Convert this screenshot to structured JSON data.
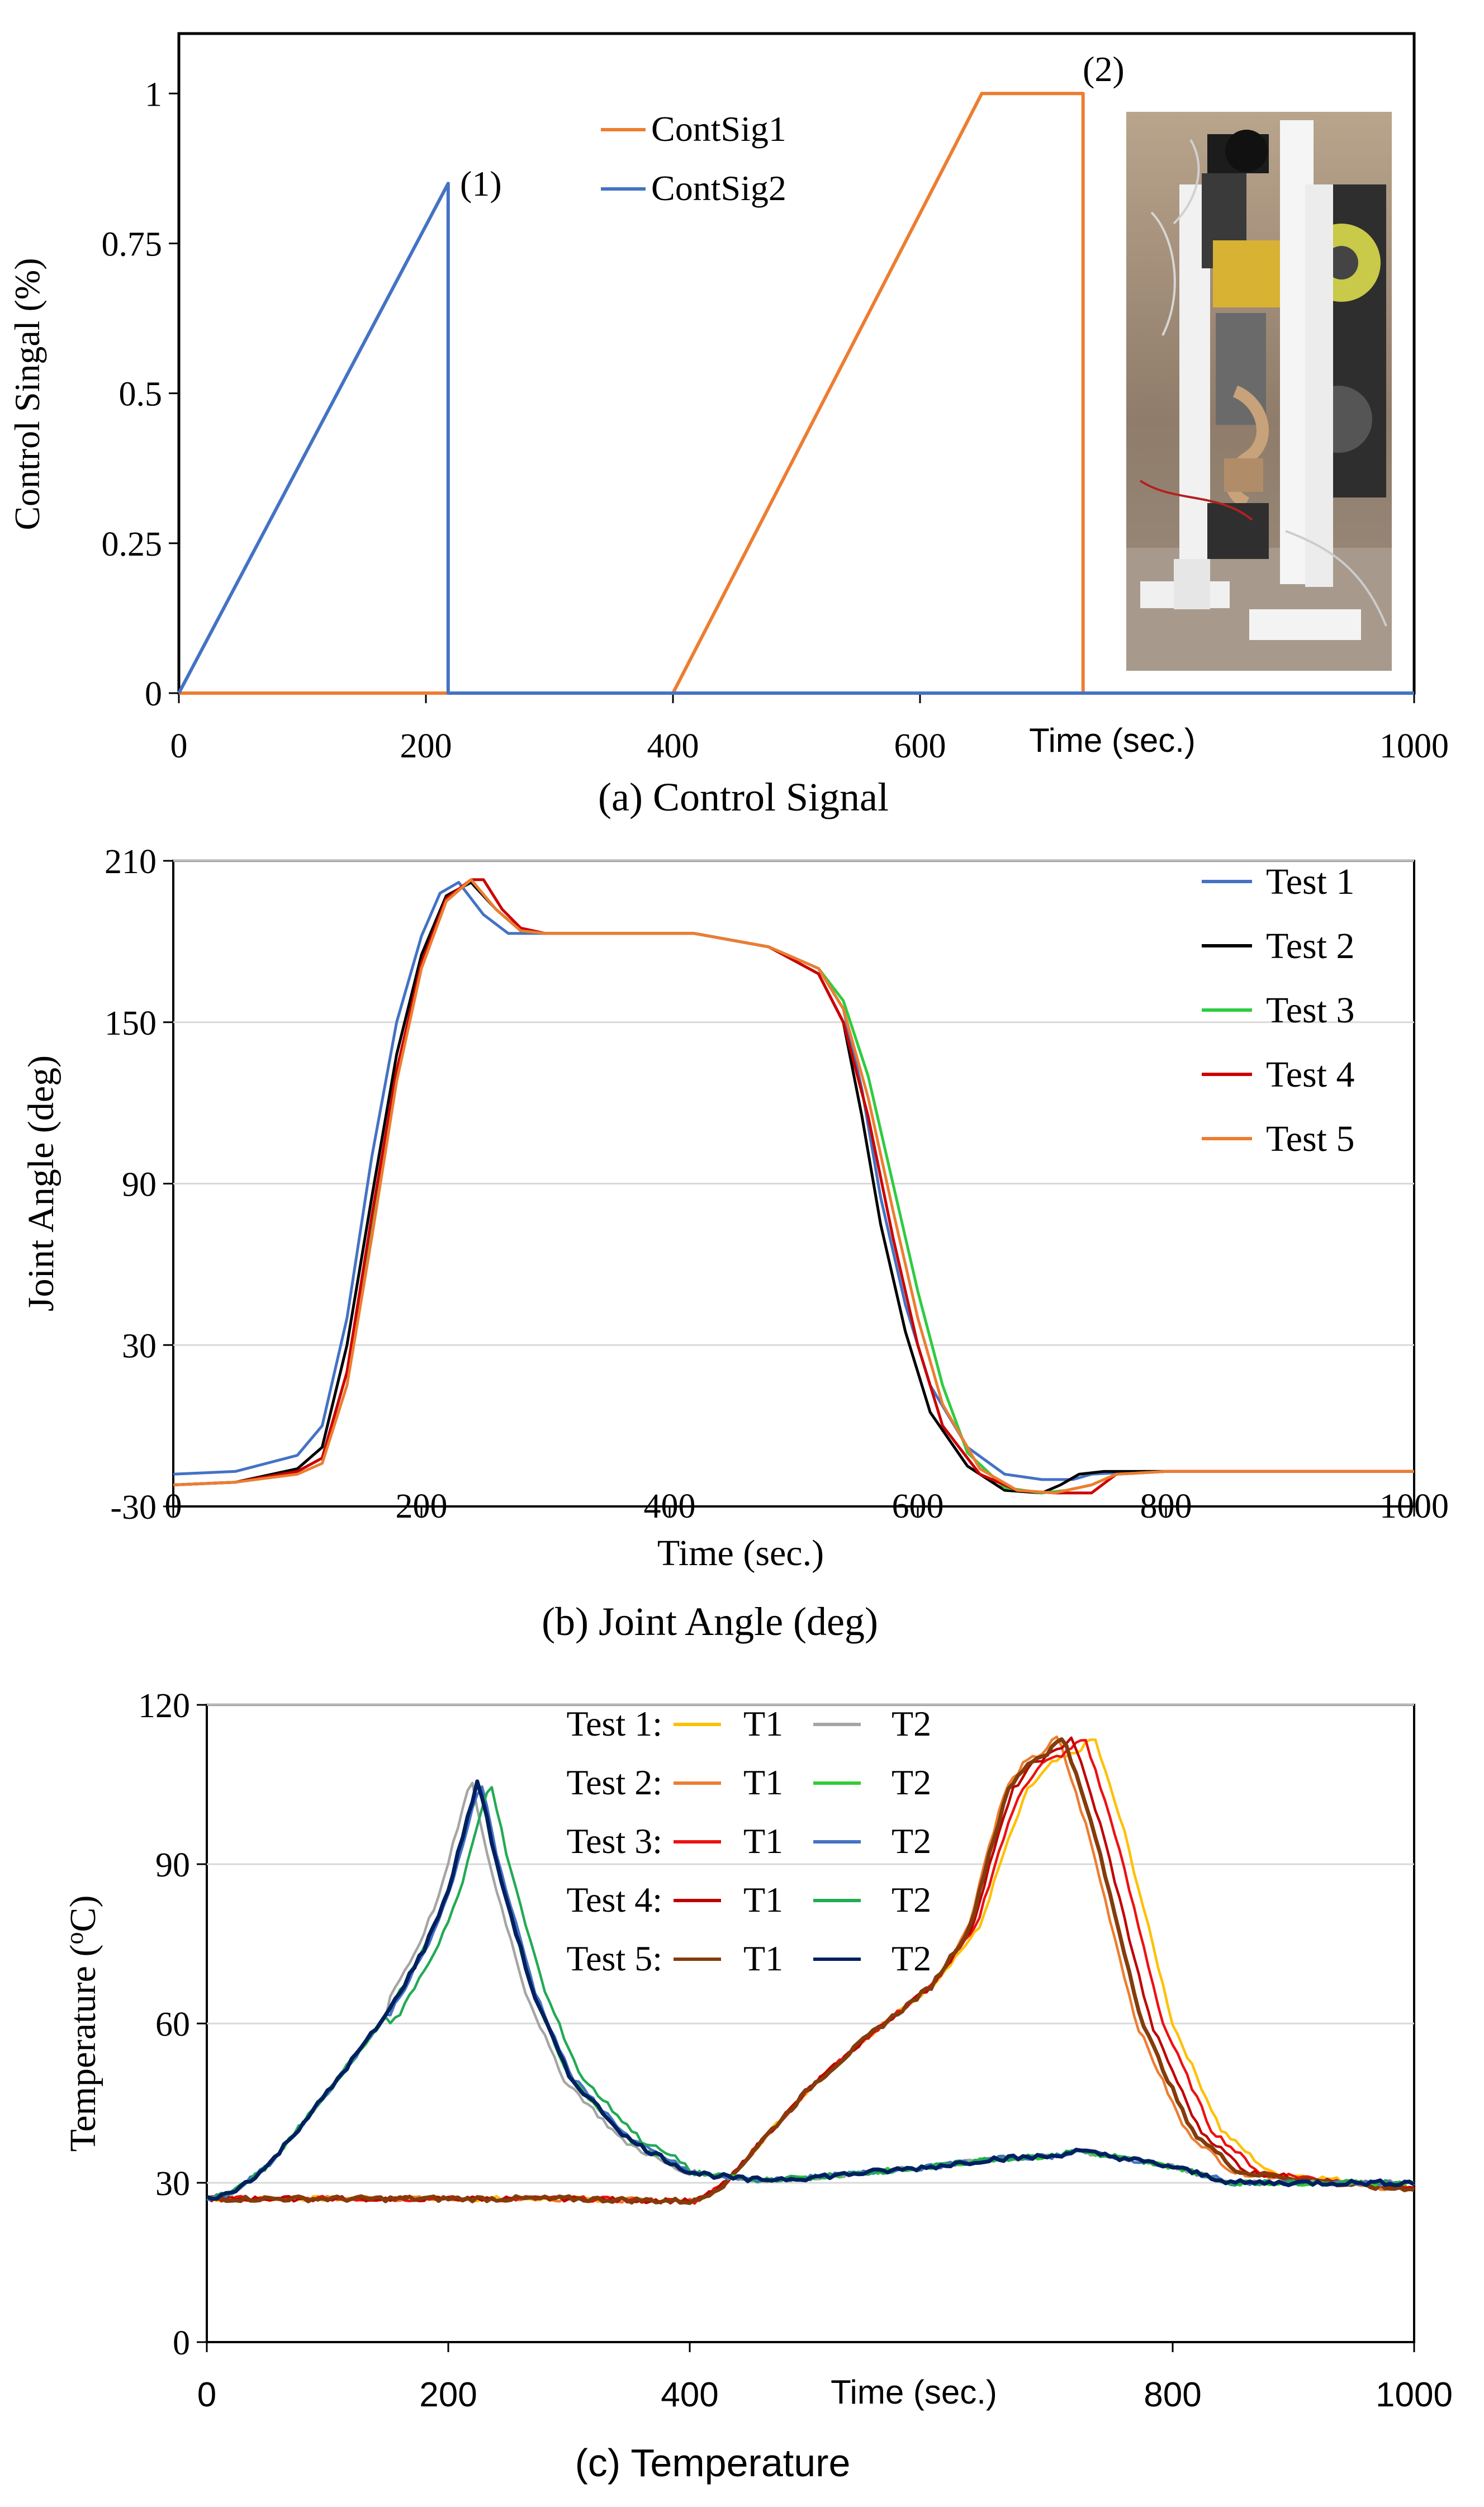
{
  "chart_data": [
    {
      "panel": "a",
      "type": "line",
      "caption": "(a) Control Signal",
      "ylabel": "Control Singal (%)",
      "xlabel": "Time (sec.)",
      "xlim": [
        0,
        1000
      ],
      "ylim": [
        0,
        1.1
      ],
      "xticks": [
        0,
        200,
        400,
        600,
        1000
      ],
      "xtick_labels": [
        "0",
        "200",
        "400",
        "600",
        "1000"
      ],
      "yticks": [
        0,
        0.25,
        0.5,
        0.75,
        1
      ],
      "ytick_labels": [
        "0",
        "0.25",
        "0.5",
        "0.75",
        "1"
      ],
      "legend": "top-center",
      "annotations": [
        {
          "text": "(1)",
          "x": 218,
          "y": 0.85
        },
        {
          "text": "(2)",
          "x": 660,
          "y": 1.02
        }
      ],
      "inset_photo": "robot-joint-test-rig-photo",
      "series": [
        {
          "name": "ContSig1",
          "color": "#ED7D31",
          "x": [
            0,
            400,
            650,
            732,
            732,
            1000
          ],
          "y": [
            0,
            0,
            1,
            1,
            0,
            0
          ]
        },
        {
          "name": "ContSig2",
          "color": "#4472C4",
          "x": [
            0,
            218,
            218,
            1000
          ],
          "y": [
            0,
            0.85,
            0,
            0
          ]
        }
      ]
    },
    {
      "panel": "b",
      "type": "line",
      "caption": "(b) Joint Angle (deg)",
      "ylabel": "Joint Angle (deg)",
      "xlabel": "Time (sec.)",
      "xlim": [
        0,
        1000
      ],
      "ylim": [
        -30,
        210
      ],
      "xticks": [
        0,
        200,
        400,
        600,
        800,
        1000
      ],
      "xtick_labels": [
        "0",
        "200",
        "400",
        "600",
        "800",
        "1000"
      ],
      "yticks": [
        -30,
        30,
        90,
        150,
        210
      ],
      "ytick_labels": [
        "-30",
        "30",
        "90",
        "150",
        "210"
      ],
      "legend": "top-right",
      "series": [
        {
          "name": "Test 1",
          "color": "#4472C4",
          "x": [
            0,
            50,
            100,
            120,
            140,
            160,
            180,
            200,
            215,
            230,
            250,
            270,
            300,
            350,
            420,
            480,
            520,
            540,
            555,
            570,
            590,
            610,
            640,
            670,
            700,
            725,
            740,
            780,
            850,
            1000
          ],
          "y": [
            -18,
            -17,
            -11,
            0,
            40,
            100,
            150,
            182,
            198,
            202,
            190,
            183,
            183,
            183,
            183,
            178,
            170,
            155,
            125,
            85,
            45,
            15,
            -8,
            -18,
            -20,
            -20,
            -18,
            -17,
            -17,
            -17
          ]
        },
        {
          "name": "Test 2",
          "color": "#000000",
          "x": [
            0,
            50,
            100,
            120,
            140,
            160,
            180,
            200,
            220,
            240,
            260,
            280,
            300,
            350,
            420,
            480,
            520,
            540,
            555,
            570,
            590,
            610,
            640,
            670,
            700,
            715,
            730,
            750,
            800,
            1000
          ],
          "y": [
            -22,
            -21,
            -16,
            -8,
            30,
            85,
            138,
            175,
            197,
            202,
            192,
            184,
            183,
            183,
            183,
            178,
            168,
            150,
            115,
            75,
            35,
            5,
            -15,
            -24,
            -25,
            -22,
            -18,
            -17,
            -17,
            -17
          ]
        },
        {
          "name": "Test 3",
          "color": "#2ECC40",
          "x": [
            0,
            50,
            100,
            120,
            140,
            160,
            180,
            200,
            220,
            240,
            260,
            280,
            300,
            350,
            420,
            480,
            520,
            540,
            560,
            580,
            600,
            620,
            640,
            670,
            700,
            720,
            740,
            760,
            800,
            1000
          ],
          "y": [
            -22,
            -21,
            -17,
            -12,
            20,
            75,
            130,
            172,
            195,
            203,
            192,
            184,
            183,
            183,
            183,
            178,
            170,
            158,
            130,
            90,
            50,
            15,
            -10,
            -23,
            -25,
            -24,
            -22,
            -18,
            -17,
            -17
          ]
        },
        {
          "name": "Test 4",
          "color": "#CC0000",
          "x": [
            0,
            50,
            100,
            120,
            140,
            160,
            180,
            200,
            220,
            240,
            250,
            265,
            280,
            300,
            350,
            420,
            480,
            520,
            540,
            560,
            580,
            600,
            620,
            650,
            680,
            710,
            740,
            760,
            800,
            1000
          ],
          "y": [
            -22,
            -21,
            -17,
            -12,
            20,
            78,
            132,
            172,
            196,
            203,
            203,
            192,
            185,
            183,
            183,
            183,
            178,
            168,
            150,
            115,
            70,
            30,
            0,
            -18,
            -24,
            -25,
            -25,
            -18,
            -17,
            -17
          ]
        },
        {
          "name": "Test 5",
          "color": "#ED7D31",
          "x": [
            0,
            50,
            100,
            120,
            140,
            160,
            180,
            200,
            220,
            240,
            260,
            280,
            300,
            350,
            420,
            480,
            520,
            540,
            560,
            580,
            600,
            620,
            650,
            680,
            710,
            740,
            760,
            800,
            1000
          ],
          "y": [
            -22,
            -21,
            -18,
            -14,
            15,
            70,
            128,
            170,
            195,
            203,
            192,
            184,
            183,
            183,
            183,
            178,
            170,
            155,
            122,
            80,
            40,
            8,
            -16,
            -24,
            -25,
            -22,
            -18,
            -17,
            -17
          ]
        }
      ]
    },
    {
      "panel": "c",
      "type": "line",
      "caption": "(c) Temperature",
      "ylabel": "Temperature (oC)",
      "ylabel_main": "Temperature (",
      "ylabel_sup": "o",
      "ylabel_tail": "C)",
      "xlabel": "Time (sec.)",
      "xlim": [
        0,
        1000
      ],
      "ylim": [
        0,
        120
      ],
      "xticks": [
        0,
        200,
        400,
        800,
        1000
      ],
      "xtick_labels": [
        "0",
        "200",
        "400",
        "800",
        "1000"
      ],
      "yticks": [
        0,
        30,
        60,
        90,
        120
      ],
      "ytick_labels": [
        "0",
        "30",
        "60",
        "90",
        "120"
      ],
      "legend": "top-center",
      "legend_rows": [
        {
          "test": "Test 1:",
          "t1_label": "T1",
          "t1_color": "#FFC000",
          "t2_label": "T2",
          "t2_color": "#A5A5A5"
        },
        {
          "test": "Test 2:",
          "t1_label": "T1",
          "t1_color": "#ED7D31",
          "t2_label": "T2",
          "t2_color": "#33CC33"
        },
        {
          "test": "Test 3:",
          "t1_label": "T1",
          "t1_color": "#EE1111",
          "t2_label": "T2",
          "t2_color": "#4472C4"
        },
        {
          "test": "Test 4:",
          "t1_label": "T1",
          "t1_color": "#C00000",
          "t2_label": "T2",
          "t2_color": "#22AA55"
        },
        {
          "test": "Test 5:",
          "t1_label": "T1",
          "t1_color": "#843C0C",
          "t2_label": "T2",
          "t2_color": "#002060"
        }
      ],
      "t1_shape": {
        "x": [
          0,
          100,
          200,
          300,
          405,
          430,
          460,
          500,
          550,
          600,
          640,
          660,
          680,
          700,
          710,
          720,
          735,
          760,
          800,
          840,
          880,
          1000
        ],
        "y": [
          27,
          27,
          27,
          27,
          26.5,
          30,
          38,
          48,
          58,
          67,
          78,
          92,
          104,
          109,
          110,
          111,
          114,
          96,
          60,
          40,
          32,
          29
        ]
      },
      "t2_shape": {
        "x": [
          0,
          20,
          50,
          100,
          150,
          180,
          200,
          215,
          225,
          240,
          270,
          300,
          350,
          400,
          450,
          500,
          550,
          600,
          650,
          700,
          720,
          750,
          800,
          850,
          900,
          1000
        ],
        "y": [
          27,
          28,
          33,
          47,
          62,
          74,
          85,
          98,
          106,
          90,
          66,
          50,
          38,
          32,
          30.5,
          31,
          32,
          33,
          34.5,
          35,
          36,
          35,
          33,
          30,
          30,
          30
        ]
      },
      "series": [
        {
          "name": "Test 1 T1",
          "color": "#FFC000",
          "shift": 0
        },
        {
          "name": "Test 2 T1",
          "color": "#ED7D31",
          "shift": -30
        },
        {
          "name": "Test 3 T1",
          "color": "#EE1111",
          "shift": -8
        },
        {
          "name": "Test 4 T1",
          "color": "#C00000",
          "shift": -18
        },
        {
          "name": "Test 5 T1",
          "color": "#843C0C",
          "shift": -25
        },
        {
          "name": "Test 1 T2",
          "color": "#A5A5A5",
          "shift": -6
        },
        {
          "name": "Test 2 T2",
          "color": "#33CC33",
          "shift": 0
        },
        {
          "name": "Test 3 T2",
          "color": "#4472C4",
          "shift": 2
        },
        {
          "name": "Test 4 T2",
          "color": "#22AA55",
          "shift": 10
        },
        {
          "name": "Test 5 T2",
          "color": "#002060",
          "shift": 0
        }
      ]
    }
  ]
}
